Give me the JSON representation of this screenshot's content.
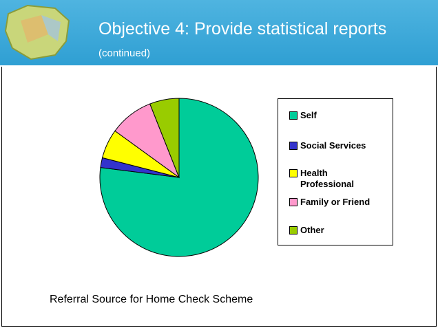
{
  "header": {
    "title": "Objective 4: Provide statistical reports",
    "subtitle": "(continued)"
  },
  "chart_data": {
    "type": "pie",
    "categories": [
      "Self",
      "Social Services",
      "Health Professional",
      "Family or Friend",
      "Other"
    ],
    "values": [
      77,
      2,
      6,
      9,
      6
    ],
    "colors": [
      "#00cc99",
      "#3333cc",
      "#ffff00",
      "#ff99cc",
      "#99cc00"
    ],
    "legend": "right"
  },
  "caption": "Referral Source for Home Check Scheme"
}
